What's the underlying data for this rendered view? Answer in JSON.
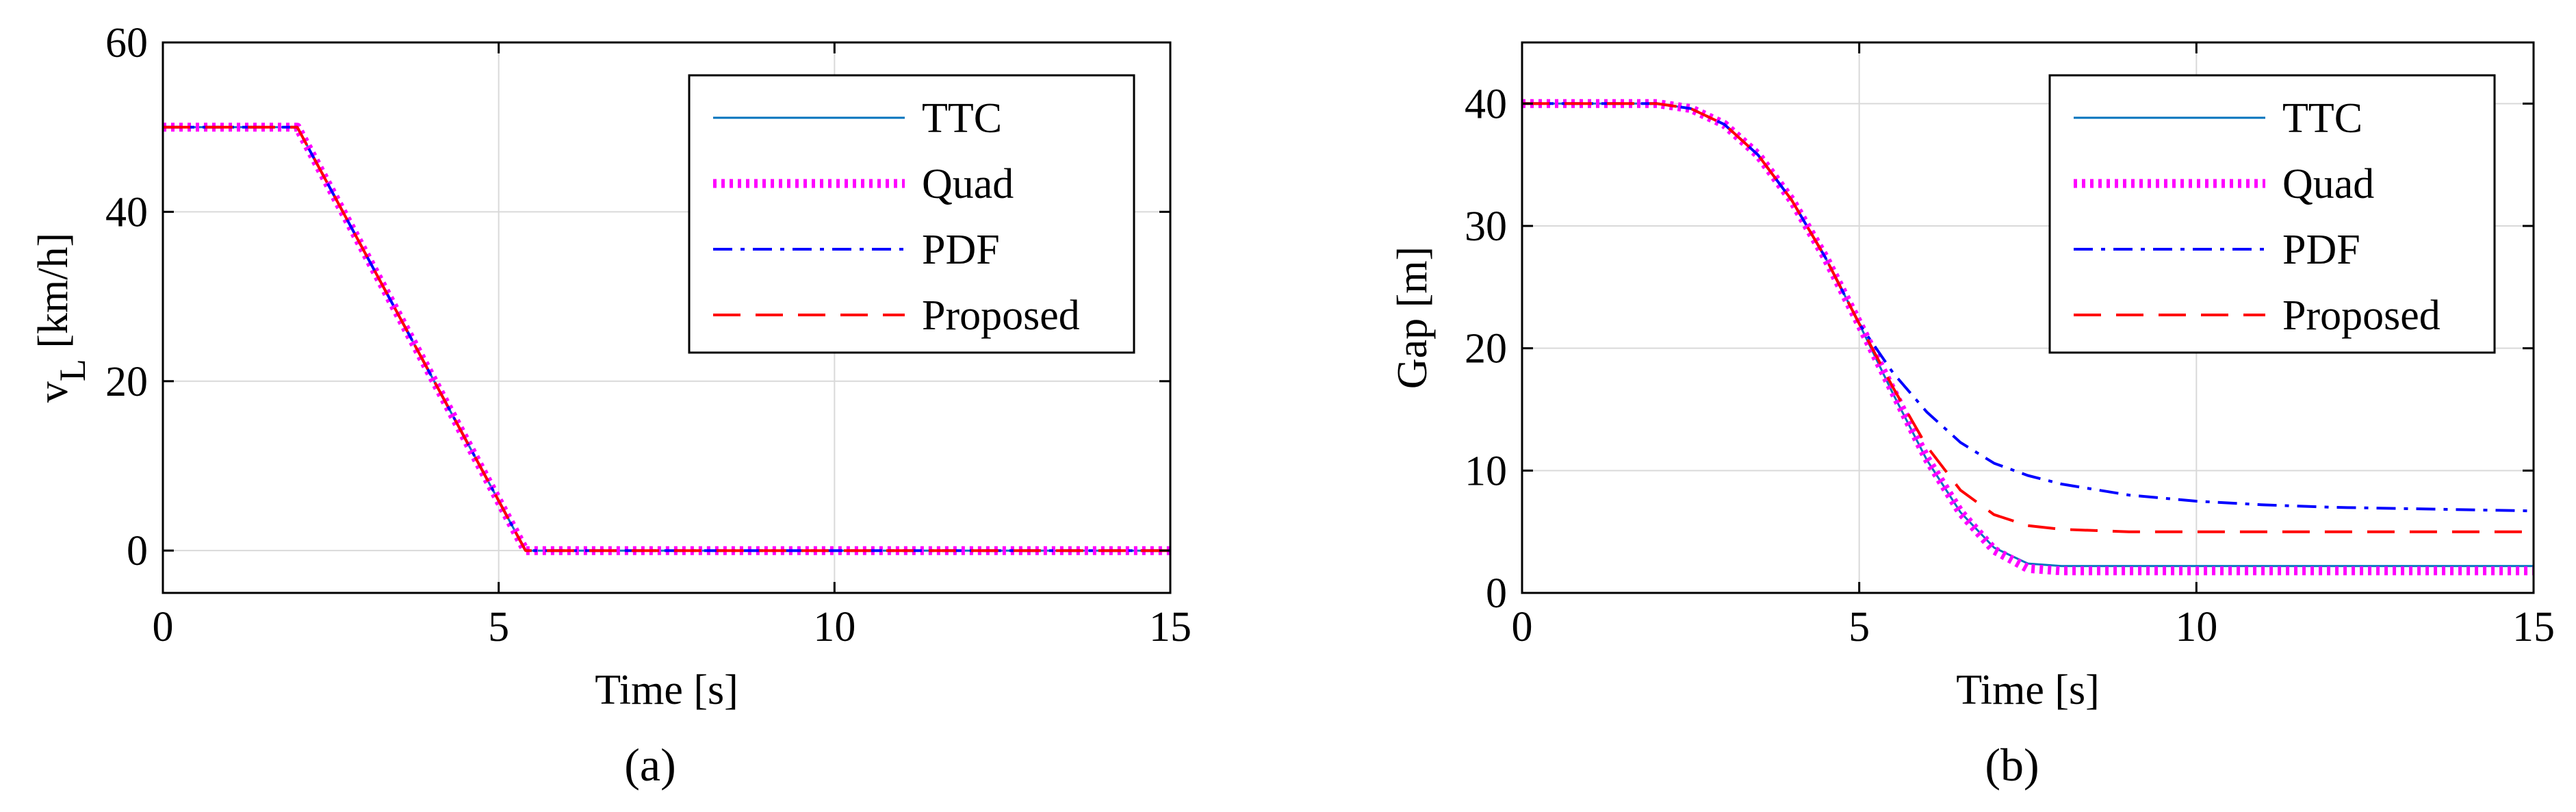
{
  "colors": {
    "ttc": "#0072bd",
    "quad": "#ff00ff",
    "pdf": "#0000ff",
    "proposed": "#ff0000",
    "grid": "#d9d9d9",
    "axis": "#000000"
  },
  "chart_data": [
    {
      "type": "line",
      "panel_label": "(a)",
      "xlabel": "Time [s]",
      "ylabel": "v",
      "ylabel_sub": "L",
      "ylabel_unit": " [km/h]",
      "xlim": [
        0,
        15
      ],
      "ylim": [
        -5,
        60
      ],
      "xticks": [
        0,
        5,
        10,
        15
      ],
      "yticks": [
        0,
        20,
        40,
        60
      ],
      "grid": true,
      "legend_position": "top-right",
      "series": [
        {
          "name": "TTC",
          "x": [
            0,
            2,
            5.4,
            15
          ],
          "y": [
            50,
            50,
            0,
            0
          ]
        },
        {
          "name": "Quad",
          "x": [
            0,
            2,
            5.4,
            15
          ],
          "y": [
            50,
            50,
            0,
            0
          ]
        },
        {
          "name": "PDF",
          "x": [
            0,
            2,
            5.4,
            15
          ],
          "y": [
            50,
            50,
            0,
            0
          ]
        },
        {
          "name": "Proposed",
          "x": [
            0,
            2,
            5.4,
            15
          ],
          "y": [
            50,
            50,
            0,
            0
          ]
        }
      ]
    },
    {
      "type": "line",
      "panel_label": "(b)",
      "xlabel": "Time [s]",
      "ylabel": "Gap [m]",
      "xlim": [
        0,
        15
      ],
      "ylim": [
        0,
        45
      ],
      "xticks": [
        0,
        5,
        10,
        15
      ],
      "yticks": [
        0,
        10,
        20,
        30,
        40
      ],
      "grid": true,
      "legend_position": "top-right",
      "series": [
        {
          "name": "TTC",
          "x": [
            0,
            2,
            2.5,
            3,
            3.5,
            4,
            4.5,
            5,
            5.5,
            6,
            6.5,
            7,
            7.5,
            8,
            9,
            10,
            12,
            15
          ],
          "y": [
            40,
            40,
            39.6,
            38.3,
            35.8,
            32.1,
            27.4,
            22,
            16.3,
            10.9,
            6.6,
            3.7,
            2.4,
            2.2,
            2.2,
            2.2,
            2.2,
            2.2
          ]
        },
        {
          "name": "Quad",
          "x": [
            0,
            2,
            2.5,
            3,
            3.5,
            4,
            4.5,
            5,
            5.5,
            6,
            6.5,
            7,
            7.5,
            8,
            9,
            10,
            12,
            15
          ],
          "y": [
            40,
            40,
            39.6,
            38.3,
            35.8,
            32.1,
            27.4,
            22,
            16.5,
            11,
            6.6,
            3.5,
            2,
            1.8,
            1.8,
            1.8,
            1.8,
            1.8
          ]
        },
        {
          "name": "PDF",
          "x": [
            0,
            2,
            2.5,
            3,
            3.5,
            4,
            4.5,
            5,
            5.5,
            6,
            6.5,
            7,
            7.5,
            8,
            9,
            10,
            11,
            12,
            13,
            14,
            15
          ],
          "y": [
            40,
            40,
            39.6,
            38.3,
            35.8,
            32.1,
            27.4,
            22,
            18,
            14.8,
            12.3,
            10.6,
            9.6,
            8.9,
            8,
            7.5,
            7.2,
            7,
            6.9,
            6.8,
            6.7
          ]
        },
        {
          "name": "Proposed",
          "x": [
            0,
            2,
            2.5,
            3,
            3.5,
            4,
            4.5,
            5,
            5.5,
            6,
            6.5,
            7,
            7.5,
            8,
            9,
            10,
            12,
            15
          ],
          "y": [
            40,
            40,
            39.6,
            38.3,
            35.8,
            32.1,
            27.4,
            22,
            16.8,
            12,
            8.4,
            6.4,
            5.5,
            5.2,
            5,
            5,
            5,
            5
          ]
        }
      ]
    }
  ]
}
